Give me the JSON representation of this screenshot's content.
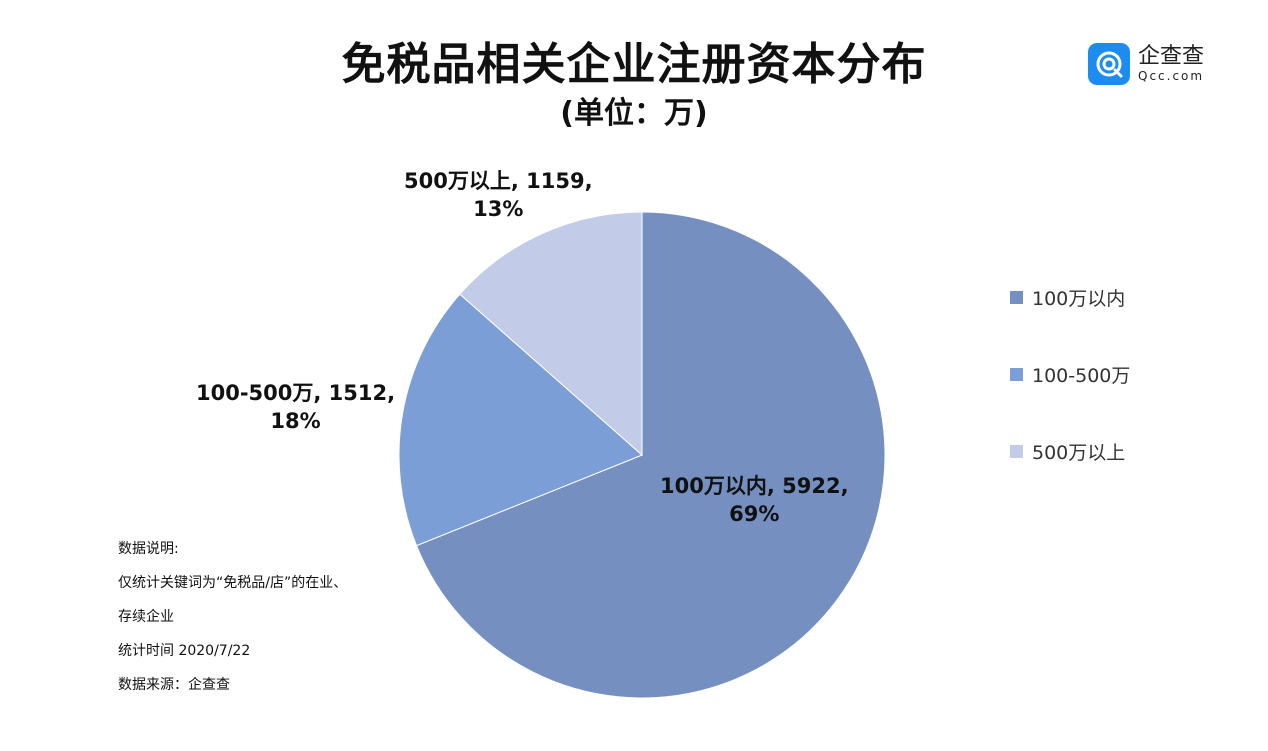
{
  "title": "免税品相关企业注册资本分布",
  "subtitle": "(单位：万)",
  "logo": {
    "cn": "企查查",
    "en": "Qcc.com",
    "color": "#1c8cf0"
  },
  "chart_data": {
    "type": "pie",
    "title": "免税品相关企业注册资本分布",
    "subtitle": "(单位：万)",
    "slices": [
      {
        "label": "100万以内",
        "value": 5922,
        "percent": "69%",
        "color": "#7590c0"
      },
      {
        "label": "100-500万",
        "value": 1512,
        "percent": "18%",
        "color": "#7c9ed6"
      },
      {
        "label": "500万以上",
        "value": 1159,
        "percent": "13%",
        "color": "#c2cce8"
      }
    ],
    "legend_position": "right"
  },
  "data_labels": [
    {
      "line1": "100万以内, 5922,",
      "line2": "69%"
    },
    {
      "line1": "100-500万, 1512,",
      "line2": "18%"
    },
    {
      "line1": "500万以上, 1159,",
      "line2": "13%"
    }
  ],
  "legend": [
    {
      "label": "100万以内"
    },
    {
      "label": "100-500万"
    },
    {
      "label": "500万以上"
    }
  ],
  "notes": [
    "数据说明:",
    "仅统计关键词为“免税品/店”的在业、",
    "存续企业",
    "统计时间 2020/7/22",
    "数据来源：企查查"
  ]
}
